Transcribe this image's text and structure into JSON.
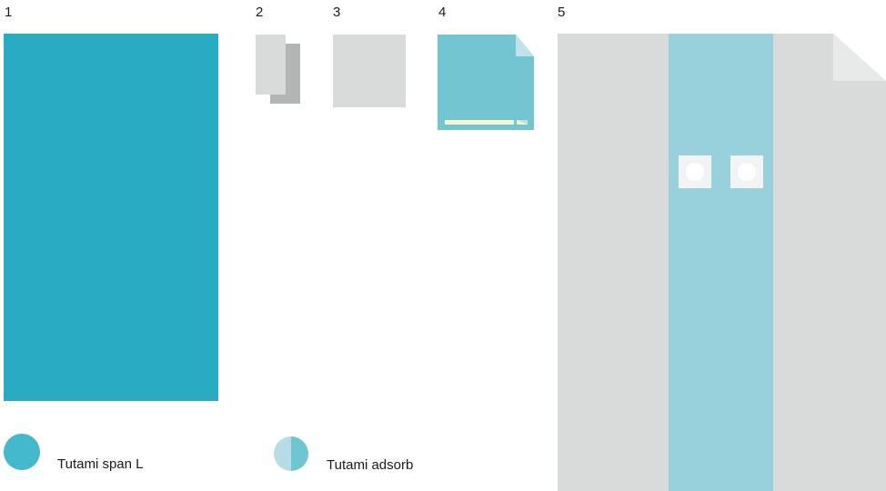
{
  "item_numbers": [
    "1",
    "2",
    "3",
    "4",
    "5"
  ],
  "legend": [
    {
      "label": "Tutami span L",
      "icon": "solid-circle-icon",
      "color": "#44b8cc"
    },
    {
      "label": "Tutami adsorb",
      "icon": "half-circle-icon",
      "color_left": "#b6dde5",
      "color_right": "#6fc6d3"
    }
  ],
  "colors": {
    "span": "#2aabc4",
    "adsorb": "#72c5d1",
    "strip": "#98d1dc",
    "gray": "#d9dbdb",
    "dark_gray": "#b3b4b4",
    "fold": "#e8e9e9",
    "cream": "#f7f4d8"
  }
}
